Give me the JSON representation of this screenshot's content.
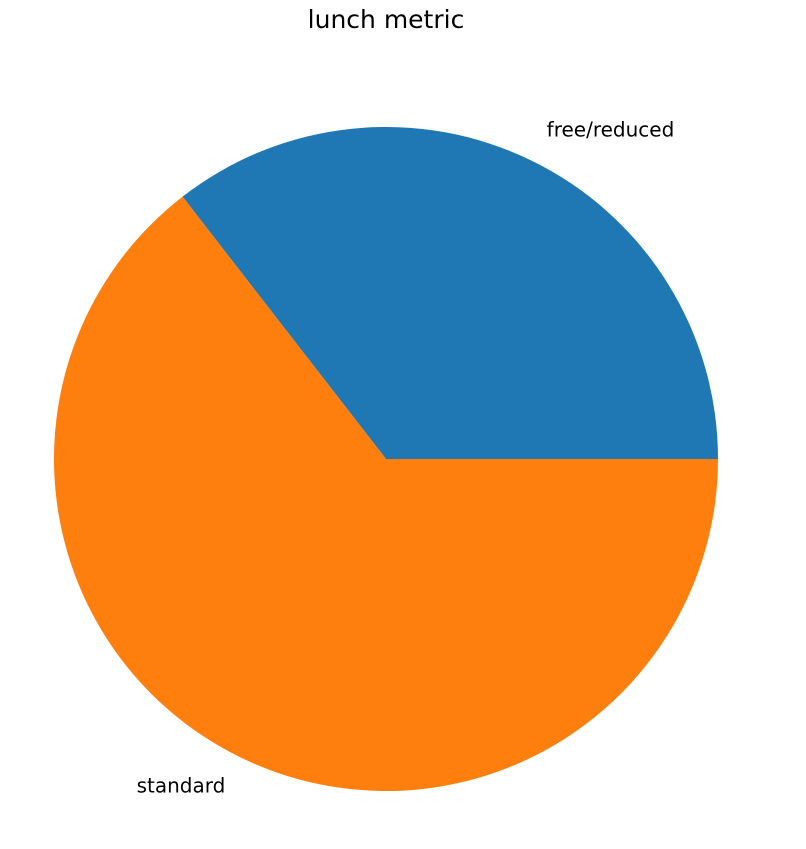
{
  "chart_data": {
    "type": "pie",
    "title": "lunch metric",
    "labels": [
      "free/reduced",
      "standard"
    ],
    "values": [
      35.5,
      64.5
    ],
    "colors": [
      "#1f77b4",
      "#ff7f0e"
    ],
    "start_angle_deg": 0,
    "direction": "counterclockwise"
  }
}
